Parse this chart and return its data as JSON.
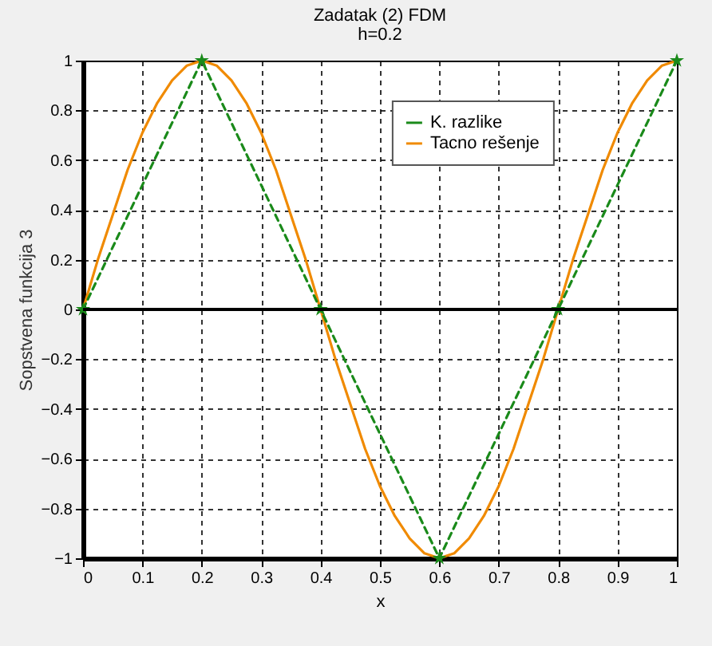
{
  "chart_data": {
    "type": "line",
    "title": "Zadatak (2) FDM",
    "subtitle": "h=0.2",
    "xlabel": "x",
    "ylabel": "Sopstvena funkcija 3",
    "xlim": [
      0,
      1
    ],
    "xticks": [
      0,
      0.1,
      0.2,
      0.3,
      0.4,
      0.5,
      0.6,
      0.7,
      0.8,
      0.9,
      1
    ],
    "ylim": [
      -1,
      1
    ],
    "yticks": [
      -1,
      -0.8,
      -0.6,
      -0.4,
      -0.2,
      0,
      0.2,
      0.4,
      0.6,
      0.8,
      1
    ],
    "grid": true,
    "legend": "top right",
    "ref_lines": [
      {
        "axis": "y",
        "value": 0,
        "color": "#000000"
      }
    ],
    "series": [
      {
        "name": "K. razlike",
        "color": "#1a8a1a",
        "line_style": "dashed",
        "marker": "star",
        "x": [
          0,
          0.2,
          0.4,
          0.6,
          0.8,
          1
        ],
        "values": [
          0,
          1,
          0,
          -1,
          0,
          1
        ]
      },
      {
        "name": "Tacno rešenje",
        "color": "#f08a00",
        "line_style": "solid",
        "marker": "none",
        "x": [
          0,
          0.025,
          0.05,
          0.075,
          0.1,
          0.125,
          0.15,
          0.175,
          0.2,
          0.225,
          0.25,
          0.275,
          0.3,
          0.325,
          0.35,
          0.375,
          0.4,
          0.425,
          0.45,
          0.475,
          0.5,
          0.525,
          0.55,
          0.575,
          0.6,
          0.625,
          0.65,
          0.675,
          0.7,
          0.725,
          0.75,
          0.775,
          0.8,
          0.825,
          0.85,
          0.875,
          0.9,
          0.925,
          0.95,
          0.975,
          1
        ],
        "values": [
          0,
          0.2,
          0.38,
          0.56,
          0.71,
          0.83,
          0.92,
          0.98,
          1,
          0.98,
          0.92,
          0.83,
          0.71,
          0.56,
          0.38,
          0.2,
          0,
          -0.2,
          -0.38,
          -0.56,
          -0.71,
          -0.83,
          -0.92,
          -0.98,
          -1,
          -0.98,
          -0.92,
          -0.83,
          -0.71,
          -0.56,
          -0.38,
          -0.2,
          0,
          0.2,
          0.38,
          0.56,
          0.71,
          0.83,
          0.92,
          0.98,
          1
        ]
      }
    ]
  }
}
